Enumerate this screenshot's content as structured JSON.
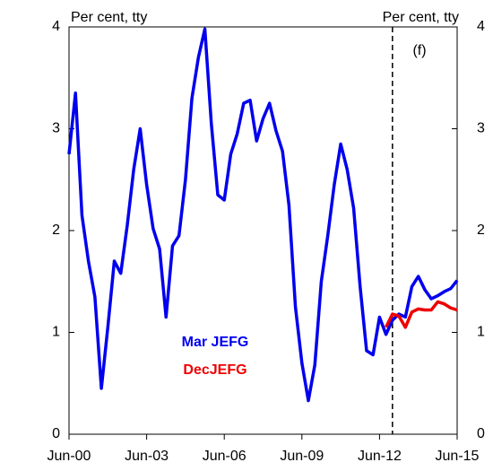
{
  "chart_data": {
    "type": "line",
    "y_label_left": "Per cent, tty",
    "y_label_right": "Per cent, tty",
    "annotation": "(f)",
    "forecast_line_x": 50,
    "x": [
      0,
      1,
      2,
      3,
      4,
      5,
      6,
      7,
      8,
      9,
      10,
      11,
      12,
      13,
      14,
      15,
      16,
      17,
      18,
      19,
      20,
      21,
      22,
      23,
      24,
      25,
      26,
      27,
      28,
      29,
      30,
      31,
      32,
      33,
      34,
      35,
      36,
      37,
      38,
      39,
      40,
      41,
      42,
      43,
      44,
      45,
      46,
      47,
      48,
      49,
      50,
      51,
      52,
      53,
      54,
      55,
      56,
      57,
      58,
      59,
      60
    ],
    "xlim": [
      0,
      60
    ],
    "xticks": [
      {
        "value": 0,
        "label": "Jun-00"
      },
      {
        "value": 12,
        "label": "Jun-03"
      },
      {
        "value": 24,
        "label": "Jun-06"
      },
      {
        "value": 36,
        "label": "Jun-09"
      },
      {
        "value": 48,
        "label": "Jun-12"
      },
      {
        "value": 60,
        "label": "Jun-15"
      }
    ],
    "ylim": [
      0,
      4
    ],
    "yticks": [
      0,
      1,
      2,
      3,
      4
    ],
    "y2lim": [
      0,
      4
    ],
    "y2ticks": [
      0,
      1,
      2,
      3,
      4
    ],
    "grid": false,
    "series": [
      {
        "name": "Mar JEFG",
        "color": "#0000ee",
        "values": [
          2.75,
          3.35,
          2.15,
          1.7,
          1.35,
          0.45,
          1.05,
          1.7,
          1.58,
          2.05,
          2.6,
          3.0,
          2.45,
          2.02,
          1.82,
          1.15,
          1.85,
          1.95,
          2.5,
          3.3,
          3.7,
          3.98,
          3.05,
          2.35,
          2.3,
          2.75,
          2.95,
          3.25,
          3.28,
          2.88,
          3.1,
          3.25,
          2.98,
          2.78,
          2.25,
          1.25,
          0.7,
          0.33,
          0.68,
          1.5,
          1.95,
          2.45,
          2.85,
          2.6,
          2.22,
          1.45,
          0.82,
          0.78,
          1.15,
          0.98,
          1.12,
          1.18,
          1.15,
          1.45,
          1.55,
          1.42,
          1.33,
          1.36,
          1.4,
          1.43,
          1.51
        ]
      },
      {
        "name": "DecJEFG",
        "color": "#ee0000",
        "values": [
          null,
          null,
          null,
          null,
          null,
          null,
          null,
          null,
          null,
          null,
          null,
          null,
          null,
          null,
          null,
          null,
          null,
          null,
          null,
          null,
          null,
          null,
          null,
          null,
          null,
          null,
          null,
          null,
          null,
          null,
          null,
          null,
          null,
          null,
          null,
          null,
          null,
          null,
          null,
          null,
          null,
          null,
          null,
          null,
          null,
          null,
          null,
          null,
          null,
          1.05,
          1.18,
          1.16,
          1.05,
          1.2,
          1.23,
          1.22,
          1.22,
          1.3,
          1.28,
          1.24,
          1.22
        ]
      }
    ]
  }
}
